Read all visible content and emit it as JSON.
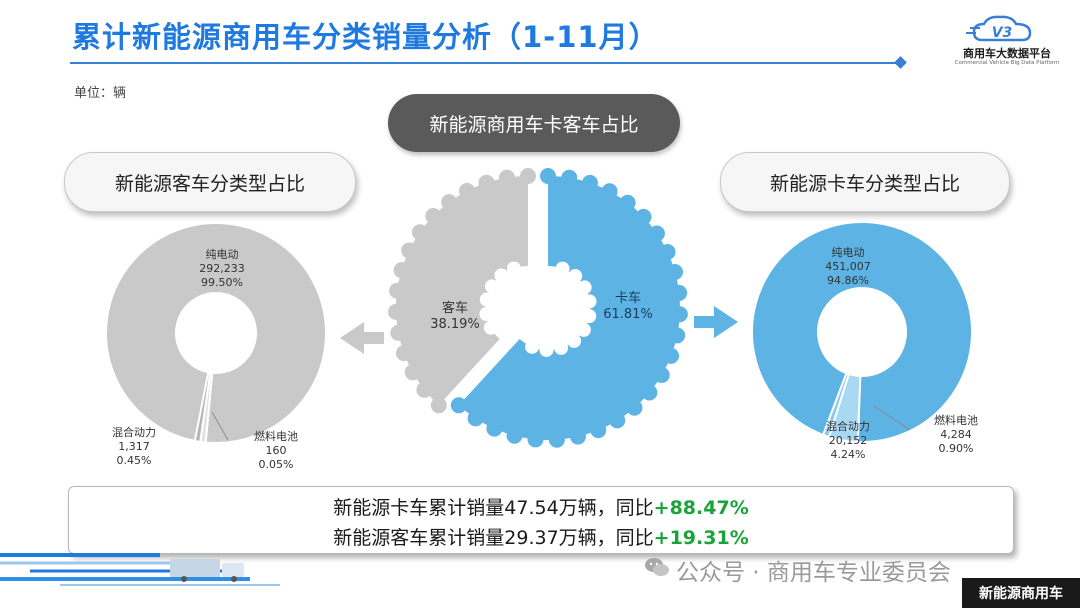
{
  "title": "累计新能源商用车分类销量分析（1-11月）",
  "logo": {
    "mark": "V3",
    "name": "商用车大数据平台",
    "sub": "Commercial Vehicle Big Data Platform"
  },
  "unit": "单位：辆",
  "pills": {
    "center": "新能源商用车卡客车占比",
    "left": "新能源客车分类型占比",
    "right": "新能源卡车分类型占比"
  },
  "summary": {
    "line1_text": "新能源卡车累计销量47.54万辆，同比",
    "line1_growth": "+88.47%",
    "line2_text": "新能源客车累计销量29.37万辆，同比",
    "line2_growth": "+19.31%"
  },
  "watermark": "公众号 · 商用车专业委员会",
  "footer": "新能源商用车",
  "colors": {
    "title": "#1f7ae0",
    "bus_gray": "#c9c9c9",
    "truck_blue": "#5db3e4",
    "truck_light": "#a9d8f2",
    "growth_green": "#1aa33a"
  },
  "chart_data": [
    {
      "type": "pie",
      "title": "新能源商用车卡客车占比",
      "slices": [
        {
          "label": "客车",
          "percent_text": "38.19%",
          "value": 38.19
        },
        {
          "label": "卡车",
          "percent_text": "61.81%",
          "value": 61.81
        }
      ]
    },
    {
      "type": "pie",
      "title": "新能源客车分类型占比",
      "slices": [
        {
          "label": "纯电动",
          "value_text": "292,233",
          "percent_text": "99.50%",
          "value": 292233
        },
        {
          "label": "混合动力",
          "value_text": "1,317",
          "percent_text": "0.45%",
          "value": 1317
        },
        {
          "label": "燃料电池",
          "value_text": "160",
          "percent_text": "0.05%",
          "value": 160
        }
      ]
    },
    {
      "type": "pie",
      "title": "新能源卡车分类型占比",
      "slices": [
        {
          "label": "纯电动",
          "value_text": "451,007",
          "percent_text": "94.86%",
          "value": 451007
        },
        {
          "label": "混合动力",
          "value_text": "20,152",
          "percent_text": "4.24%",
          "value": 20152
        },
        {
          "label": "燃料电池",
          "value_text": "4,284",
          "percent_text": "0.90%",
          "value": 4284
        }
      ]
    }
  ]
}
